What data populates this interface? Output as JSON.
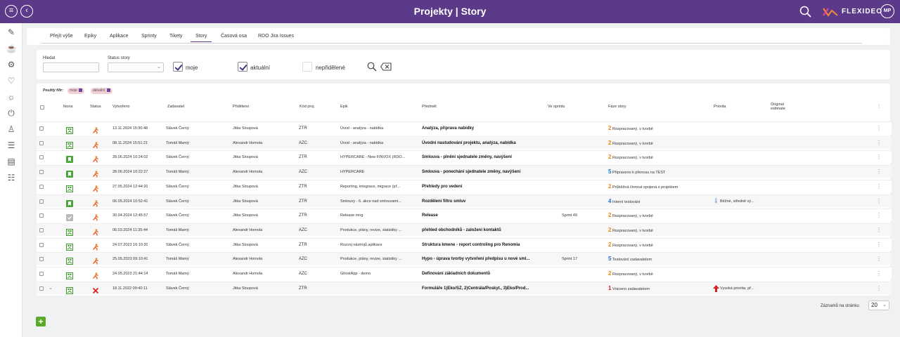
{
  "app": {
    "title": "Projekty | Story",
    "brand": "FLEXIDEO",
    "user_initials": "MP"
  },
  "tabs": [
    "Přejít výše",
    "Epiky",
    "Aplikace",
    "Sprinty",
    "Tikety",
    "Story",
    "Časová osa",
    "RDO Jira Issues"
  ],
  "active_tab": "Story",
  "filter": {
    "search_label": "Hledat",
    "search_value": "",
    "status_label": "Status story",
    "status_value": "",
    "checkboxes": [
      {
        "label": "moje",
        "checked": true
      },
      {
        "label": "aktuální",
        "checked": true
      },
      {
        "label": "nepřidělené",
        "checked": false
      }
    ]
  },
  "applied_filter": {
    "label": "Použitý filtr:",
    "chips": [
      "moje",
      "aktuální"
    ]
  },
  "columns": [
    "Ikona",
    "Status",
    "Vytvořeno",
    "Zadavatel",
    "Přiděleno",
    "Kód proj.",
    "Epik",
    "Předmět",
    "Ve sprintu",
    "Fáze story",
    "Priorita",
    "Original estimate"
  ],
  "rows": [
    {
      "icon": "story-green-icon",
      "status": "person-running-icon",
      "created": "13.11.2024 15:30:48",
      "reporter": "Slávek Černý",
      "assigned": "Jitka Sloupová",
      "code": "ZTR",
      "epic": "Úvod - analýza - nabídka",
      "subject": "Analýza, příprava nabídky",
      "sprint": "",
      "phase_num": "2",
      "phase": "Rozpracovaný, v tvorbě",
      "priority": "",
      "priority_icon": ""
    },
    {
      "icon": "story-green-icon",
      "status": "person-running-icon",
      "created": "08.11.2024 15:51:21",
      "reporter": "Tomáš Mamý",
      "assigned": "Alexandr Homola",
      "code": "AZC",
      "epic": "Úvod - analýza - nabídka",
      "subject": "Úvodní nastudování projektu, analýza, nabídka",
      "sprint": "",
      "phase_num": "2",
      "phase": "Rozpracovaný, v tvorbě",
      "priority": "",
      "priority_icon": ""
    },
    {
      "icon": "bookmark-icon",
      "status": "person-running-icon",
      "created": "28.06.2024 10:24:02",
      "reporter": "Slávek Černý",
      "assigned": "Jitka Sloupová",
      "code": "ZTR",
      "epic": "HYPERCARE - New FINVOX (RDO...",
      "subject": "Smlouva - plnění sjednatele změny, navýšení",
      "sprint": "",
      "phase_num": "2",
      "phase": "Rozpracovaný, v tvorbě",
      "priority": "",
      "priority_icon": ""
    },
    {
      "icon": "bookmark-icon",
      "status": "person-running-icon",
      "created": "28.06.2024 10:22:27",
      "reporter": "Tomáš Mamý",
      "assigned": "Alexandr Homola",
      "code": "AZC",
      "epic": "HYPERCARE",
      "subject": "Smlouva - ponechání sjednatele změny, navýšení",
      "sprint": "",
      "phase_num": "5",
      "phase": "Připraveno k přenosu na TEST",
      "priority": "",
      "priority_icon": ""
    },
    {
      "icon": "story-green-icon",
      "status": "person-running-icon",
      "created": "27.05.2024 12:44:20",
      "reporter": "Slávek Černý",
      "assigned": "Jitka Sloupová",
      "code": "ZTR",
      "epic": "Reporting, integrace, migrace (př...",
      "subject": "Přehledy pro vedení",
      "sprint": "",
      "phase_num": "2",
      "phase": "Průběžná činnost spojená s projektem",
      "priority": "",
      "priority_icon": ""
    },
    {
      "icon": "bookmark-icon",
      "status": "person-running-icon",
      "created": "06.05.2024 10:52:41",
      "reporter": "Slávek Černý",
      "assigned": "Jitka Sloupová",
      "code": "ZTR",
      "epic": "Smlouvy - 6. akce nad smlouvami...",
      "subject": "Rozdělení filtru smluv",
      "sprint": "",
      "phase_num": "4",
      "phase": "Interní testování",
      "priority": "Běžné, středně vý...",
      "priority_icon": "thermometer-icon"
    },
    {
      "icon": "check-gray-icon",
      "status": "person-running-icon",
      "created": "30.04.2024 12:45:57",
      "reporter": "Slávek Černý",
      "assigned": "Jitka Sloupová",
      "code": "ZTR",
      "epic": "Release mng",
      "subject": "Release",
      "sprint": "Sprint 49",
      "phase_num": "2",
      "phase": "Rozpracovaný, v tvorbě",
      "priority": "",
      "priority_icon": ""
    },
    {
      "icon": "story-green-icon",
      "status": "person-running-icon",
      "created": "06.03.2024 11:35:44",
      "reporter": "Tomáš Mamý",
      "assigned": "Alexandr Homola",
      "code": "AZC",
      "epic": "Produkce, plány, revize, statistiky ...",
      "subject": "přehled obchodníků - založení kontaktů",
      "sprint": "",
      "phase_num": "2",
      "phase": "Rozpracovaný, v tvorbě",
      "priority": "",
      "priority_icon": ""
    },
    {
      "icon": "story-green-icon",
      "status": "person-running-icon",
      "created": "24.07.2023 16:10:20",
      "reporter": "Slávek Černý",
      "assigned": "Jitka Sloupová",
      "code": "ZTR",
      "epic": "Rozvoj nástrojů aplikace",
      "subject": "Struktura kmene - report controling pro Renomia",
      "sprint": "",
      "phase_num": "2",
      "phase": "Rozpracovaný, v tvorbě",
      "priority": "",
      "priority_icon": ""
    },
    {
      "icon": "story-green-icon",
      "status": "person-running-icon",
      "created": "25.05.2023 09:10:41",
      "reporter": "Tomáš Mamý",
      "assigned": "Alexandr Homola",
      "code": "AZC",
      "epic": "Produkce, plány, revize, statistiky ...",
      "subject": "Hypo - úprava tvorby vytvoření předpisu u nové sml...",
      "sprint": "Sprint 17",
      "phase_num": "5",
      "phase": "Testování zadavatelem",
      "priority": "",
      "priority_icon": ""
    },
    {
      "icon": "story-green-icon",
      "status": "person-running-icon",
      "created": "24.05.2023 21:44:14",
      "reporter": "Tomáš Mamý",
      "assigned": "Alexandr Homola",
      "code": "AZC",
      "epic": "GhostApp - demo",
      "subject": "Definování základních dokumentů",
      "sprint": "",
      "phase_num": "2",
      "phase": "Rozpracovaný, v tvorbě",
      "priority": "",
      "priority_icon": ""
    },
    {
      "icon": "story-green-icon",
      "status": "red-x-icon",
      "created": "18.11.2022 09:40:11",
      "reporter": "Slávek Černý",
      "assigned": "Jitka Sloupová",
      "code": "ZTR",
      "epic": "",
      "subject": "Formuláře 1)Eko/SZ, 2)Centrála/Poskyt., 3)Eko/Prod...",
      "sprint": "",
      "phase_num": "1",
      "phase": "Vráceno zadavatelem",
      "priority": "Vysoká priorita, př...",
      "priority_icon": "red-arrow-up-icon"
    }
  ],
  "pager": {
    "label": "Záznamů na stránku",
    "value": "20"
  },
  "colors": {
    "header": "#5b3a8a",
    "phase1": "#d62020",
    "phase2": "#e8860c",
    "phase4": "#1a73d0",
    "phase5": "#1a73d0",
    "add": "#5aaa2a"
  }
}
